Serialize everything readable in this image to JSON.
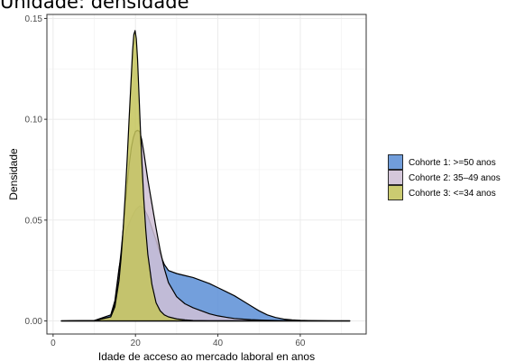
{
  "chart_data": {
    "type": "area",
    "title": "Unidade: densidade",
    "xlabel": "Idade de acceso ao mercado laboral en anos",
    "ylabel": "Densidade",
    "xlim": [
      -1.5,
      76
    ],
    "ylim": [
      -0.0065,
      0.152
    ],
    "x_ticks": [
      0,
      20,
      40,
      60
    ],
    "x_tick_labels": [
      "0",
      "20",
      "40",
      "60"
    ],
    "y_ticks": [
      0,
      0.05,
      0.1,
      0.15
    ],
    "y_tick_labels": [
      "0.00",
      "0.05",
      "0.10",
      "0.15"
    ],
    "grid": true,
    "legend_position": "right",
    "series": [
      {
        "name": "Cohorte 1: >=50 anos",
        "color": "#5b8ed6",
        "x": [
          2,
          10,
          14,
          15,
          16,
          17,
          18,
          19,
          20,
          21,
          22,
          23,
          24,
          25,
          26,
          27,
          28,
          30,
          32,
          34,
          36,
          38,
          40,
          42,
          44,
          46,
          48,
          50,
          52,
          54,
          56,
          58,
          60,
          62,
          64,
          66,
          68,
          72
        ],
        "y": [
          0,
          0.0002,
          0.003,
          0.01,
          0.026,
          0.038,
          0.046,
          0.051,
          0.055,
          0.057,
          0.056,
          0.052,
          0.046,
          0.04,
          0.033,
          0.028,
          0.025,
          0.0235,
          0.0225,
          0.0215,
          0.02,
          0.0185,
          0.0165,
          0.0145,
          0.0125,
          0.01,
          0.0075,
          0.005,
          0.003,
          0.0017,
          0.0009,
          0.0005,
          0.0003,
          0.0002,
          0.0001,
          5e-05,
          2e-05,
          0
        ]
      },
      {
        "name": "Cohorte 2: 35–49 anos",
        "color": "#cfc0d6",
        "x": [
          2,
          10,
          14,
          15,
          16,
          16.5,
          17,
          17.5,
          18,
          18.5,
          19,
          19.5,
          20,
          20.5,
          21,
          21.5,
          22,
          22.5,
          23,
          24,
          25,
          26,
          27,
          28,
          30,
          32,
          34,
          36,
          38,
          40,
          42,
          44,
          48,
          52,
          56,
          62,
          72
        ],
        "y": [
          0,
          0.0002,
          0.002,
          0.008,
          0.025,
          0.034,
          0.045,
          0.057,
          0.068,
          0.078,
          0.086,
          0.091,
          0.094,
          0.0945,
          0.094,
          0.09,
          0.084,
          0.077,
          0.07,
          0.058,
          0.046,
          0.035,
          0.026,
          0.019,
          0.012,
          0.0085,
          0.0065,
          0.005,
          0.0035,
          0.0025,
          0.0018,
          0.0012,
          0.0006,
          0.0003,
          0.0001,
          3e-05,
          0
        ]
      },
      {
        "name": "Cohorte 3: <=34 anos",
        "color": "#c4c45a",
        "x": [
          2,
          10,
          14,
          15,
          16,
          16.5,
          17,
          17.5,
          18,
          18.5,
          19,
          19.3,
          19.6,
          19.9,
          20.2,
          20.5,
          20.8,
          21.2,
          21.6,
          22,
          22.5,
          23,
          24,
          25,
          26,
          27,
          28,
          30,
          32,
          34,
          38,
          72
        ],
        "y": [
          0,
          0.0001,
          0.002,
          0.007,
          0.02,
          0.031,
          0.045,
          0.062,
          0.081,
          0.102,
          0.122,
          0.134,
          0.142,
          0.144,
          0.14,
          0.13,
          0.115,
          0.095,
          0.077,
          0.061,
          0.045,
          0.033,
          0.018,
          0.009,
          0.005,
          0.003,
          0.002,
          0.001,
          0.0005,
          0.0002,
          5e-05,
          0
        ]
      }
    ]
  }
}
